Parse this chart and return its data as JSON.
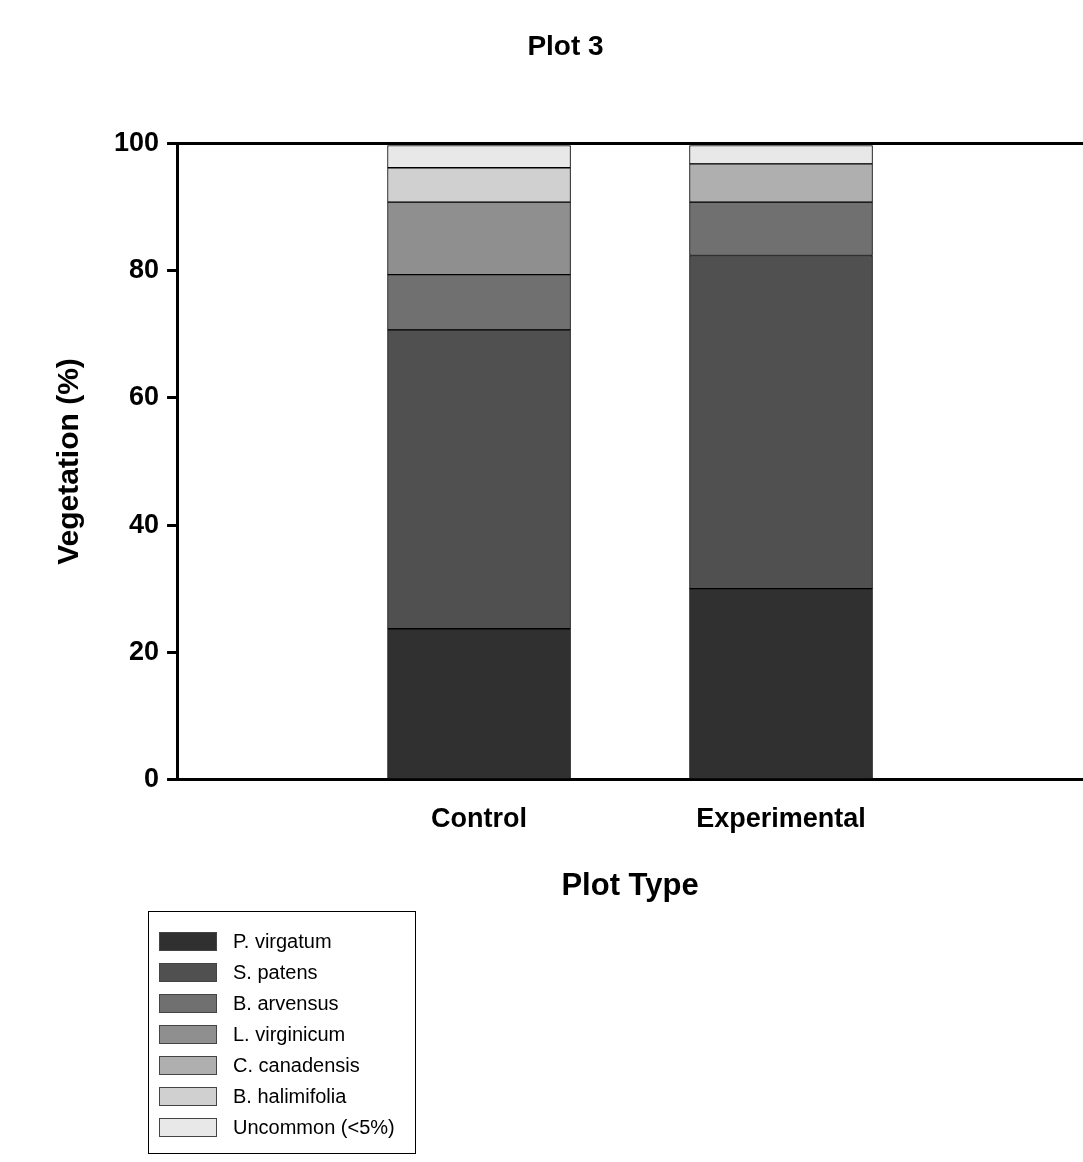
{
  "chart_data": {
    "type": "bar",
    "title": "Plot 3",
    "xlabel": "Plot Type",
    "ylabel": "Vegetation (%)",
    "categories": [
      "Control",
      "Experimental"
    ],
    "stacked": true,
    "ylim": [
      0,
      100
    ],
    "yticks": [
      0,
      20,
      40,
      60,
      80,
      100
    ],
    "grid": false,
    "legend": "bottom left",
    "series": [
      {
        "name": "P. virgatum",
        "color": "#303030",
        "values": [
          23.7,
          30
        ]
      },
      {
        "name": "S. patens",
        "color": "#505050",
        "values": [
          47,
          52.4
        ]
      },
      {
        "name": "B. arvensus",
        "color": "#707070",
        "values": [
          8.7,
          8.4
        ]
      },
      {
        "name": "L. virginicum",
        "color": "#8f8f8f",
        "values": [
          11.4,
          0
        ]
      },
      {
        "name": "C. canadensis",
        "color": "#afafaf",
        "values": [
          0,
          6
        ]
      },
      {
        "name": "B. halimifolia",
        "color": "#d0d0d0",
        "values": [
          5.4,
          0
        ]
      },
      {
        "name": "Uncommon (<5%)",
        "color": "#e8e8e8",
        "values": [
          3.5,
          2.9
        ]
      }
    ]
  }
}
